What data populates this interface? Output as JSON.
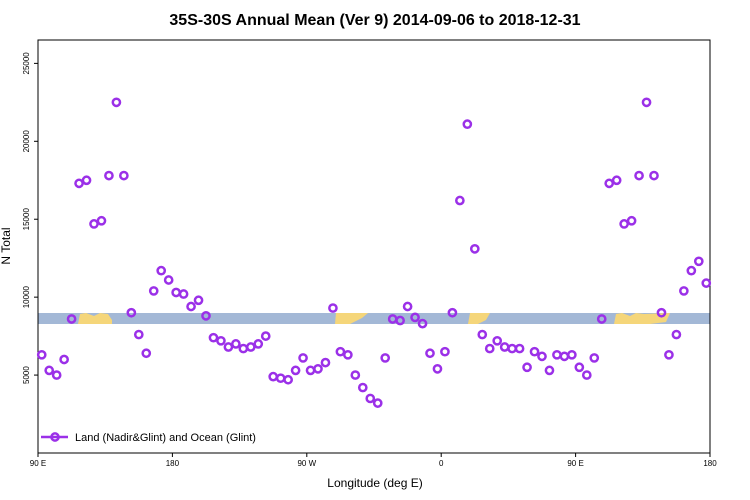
{
  "chart_data": {
    "type": "scatter",
    "title": "35S-30S Annual Mean (Ver 9)   2014-09-06 to 2018-12-31",
    "xlabel": "Longitude (deg E)",
    "ylabel": "N Total",
    "xlim": [
      90,
      540
    ],
    "ylim": [
      0,
      26500
    ],
    "grid": false,
    "legend_position": "bottom-left",
    "x_ticks": [
      {
        "value": 90,
        "label": "90 E"
      },
      {
        "value": 180,
        "label": "180"
      },
      {
        "value": 270,
        "label": "90 W"
      },
      {
        "value": 360,
        "label": "0"
      },
      {
        "value": 450,
        "label": "90 E"
      },
      {
        "value": 540,
        "label": "180"
      }
    ],
    "y_ticks": [
      {
        "value": 5000,
        "label": "5000"
      },
      {
        "value": 10000,
        "label": "10000"
      },
      {
        "value": 15000,
        "label": "15000"
      },
      {
        "value": 20000,
        "label": "20000"
      },
      {
        "value": 25000,
        "label": "25000"
      }
    ],
    "series": [
      {
        "name": "Land (Nadir&Glint) and Ocean (Glint)",
        "color": "#9b30e8",
        "x": [
          92.5,
          97.5,
          102.5,
          107.5,
          112.5,
          117.5,
          122.5,
          127.5,
          132.5,
          137.5,
          142.5,
          147.5,
          152.5,
          157.5,
          162.5,
          167.5,
          172.5,
          177.5,
          182.5,
          187.5,
          192.5,
          197.5,
          202.5,
          207.5,
          212.5,
          217.5,
          222.5,
          227.5,
          232.5,
          237.5,
          242.5,
          247.5,
          252.5,
          257.5,
          262.5,
          267.5,
          272.5,
          277.5,
          282.5,
          287.5,
          292.5,
          297.5,
          302.5,
          307.5,
          312.5,
          317.5,
          322.5,
          327.5,
          332.5,
          337.5,
          342.5,
          347.5,
          352.5,
          357.5,
          362.5,
          367.5,
          372.5,
          377.5,
          382.5,
          387.5,
          392.5,
          397.5,
          402.5,
          407.5,
          412.5,
          417.5,
          422.5,
          427.5,
          432.5,
          437.5,
          442.5,
          447.5,
          452.5,
          457.5,
          462.5,
          467.5,
          472.5,
          477.5,
          482.5,
          487.5,
          492.5,
          497.5,
          502.5,
          507.5,
          512.5,
          517.5,
          522.5,
          527.5,
          532.5,
          537.5
        ],
        "y": [
          6300,
          5300,
          5000,
          6000,
          8600,
          17300,
          17500,
          14700,
          14900,
          17800,
          22500,
          17800,
          9000,
          7600,
          6400,
          10400,
          11700,
          11100,
          10300,
          10200,
          9400,
          9800,
          8800,
          7400,
          7200,
          6800,
          7000,
          6700,
          6800,
          7000,
          7500,
          4900,
          4800,
          4700,
          5300,
          6100,
          5300,
          5400,
          5800,
          9300,
          6500,
          6300,
          5000,
          4200,
          3500,
          3200,
          6100,
          8600,
          8500,
          9400,
          8700,
          8300,
          6400,
          5400,
          6500,
          9000,
          16200,
          21100,
          13100,
          7600,
          6700,
          7200,
          6800,
          6700,
          6700,
          5500,
          6500,
          6200,
          5300,
          6300,
          6200,
          6300,
          5500,
          5000,
          6100,
          8600,
          17300,
          17500,
          14700,
          14900,
          17800,
          22500,
          17800,
          9000,
          6300,
          7600,
          10400,
          11700,
          12300,
          10900
        ]
      }
    ],
    "legend": [
      "Land (Nadir&Glint) and Ocean (Glint)"
    ]
  }
}
